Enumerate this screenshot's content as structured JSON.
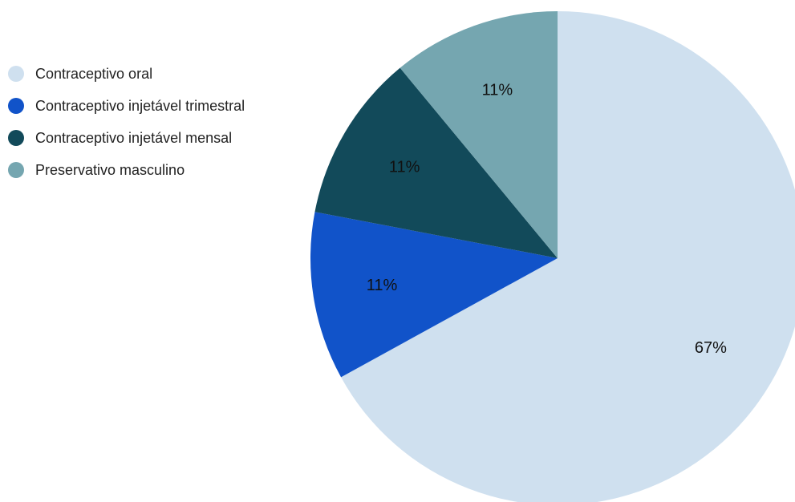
{
  "chart_data": {
    "type": "pie",
    "categories": [
      "Contraceptivo oral",
      "Contraceptivo injetável trimestral",
      "Contraceptivo injetável mensal",
      "Preservativo masculino"
    ],
    "values": [
      67,
      11,
      11,
      11
    ],
    "value_labels": [
      "67%",
      "11%",
      "11%",
      "11%"
    ],
    "colors": [
      "#cfe0ef",
      "#1153c9",
      "#124a5a",
      "#75a6b0"
    ],
    "legend_position": "top-left",
    "start": "top, clockwise"
  }
}
